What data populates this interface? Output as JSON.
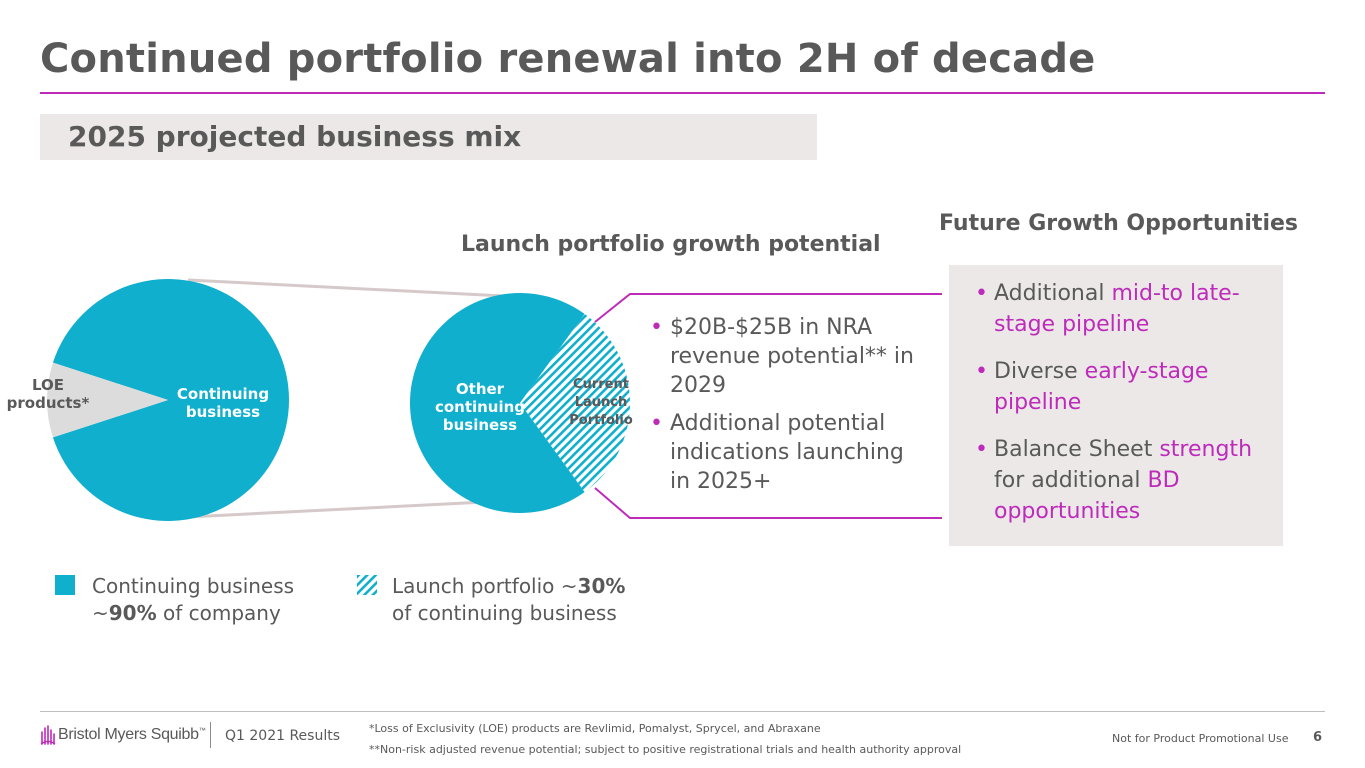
{
  "header": {
    "title": "Continued portfolio renewal into 2H of decade",
    "subtitle": "2025 projected business mix"
  },
  "launch_section": {
    "heading": "Launch portfolio growth potential",
    "bullets": [
      "$20B-$25B in NRA revenue potential** in 2029",
      "Additional potential indications launching in 2025+"
    ]
  },
  "future_section": {
    "heading": "Future Growth Opportunities",
    "bullets": [
      {
        "parts": [
          {
            "text": "Additional ",
            "hl": false
          },
          {
            "text": "mid-to late-stage pipeline",
            "hl": true
          }
        ]
      },
      {
        "parts": [
          {
            "text": "Diverse ",
            "hl": false
          },
          {
            "text": "early-stage pipeline",
            "hl": true
          }
        ]
      },
      {
        "parts": [
          {
            "text": "Balance Sheet ",
            "hl": false
          },
          {
            "text": "strength",
            "hl": true
          },
          {
            "text": " for additional ",
            "hl": false
          },
          {
            "text": "BD",
            "hl": true
          },
          {
            "text": " opportunities",
            "hl": true
          }
        ]
      }
    ]
  },
  "legend": {
    "continuing_line1": "Continuing business",
    "continuing_prefix": "~",
    "continuing_bold": "90%",
    "continuing_suffix": " of company",
    "launch_prefix": "Launch portfolio ~",
    "launch_bold": "30%",
    "launch_line2": "of continuing business"
  },
  "chart_data": [
    {
      "type": "pie",
      "title": "",
      "slices": [
        {
          "label": "Continuing business",
          "value": 90,
          "color": "#0fafcd",
          "pattern": "solid"
        },
        {
          "label": "LOE products*",
          "value": 10,
          "color": "#dddcdc",
          "pattern": "solid"
        }
      ]
    },
    {
      "type": "pie",
      "title": "",
      "slices": [
        {
          "label": "Other continuing business",
          "value": 70,
          "color": "#0fafcd",
          "pattern": "solid"
        },
        {
          "label": "Current Launch Portfolio",
          "value": 30,
          "color": "#0fafcd",
          "pattern": "hatched"
        }
      ]
    }
  ],
  "footer": {
    "logo_text": "Bristol Myers Squibb",
    "logo_tm": "™",
    "report": "Q1 2021 Results",
    "footnote1": "*Loss of Exclusivity (LOE) products are Revlimid, Pomalyst, Sprycel, and Abraxane",
    "footnote2": "**Non-risk adjusted revenue potential; subject to positive registrational trials and health authority approval",
    "disclaimer": "Not for Product Promotional Use",
    "page": "6"
  },
  "colors": {
    "accent": "#be2bbb",
    "teal": "#0fafcd",
    "text": "#595959",
    "box": "#ece8e8",
    "loe_gray": "#dddcdc",
    "connector": "#d6c9c9"
  }
}
